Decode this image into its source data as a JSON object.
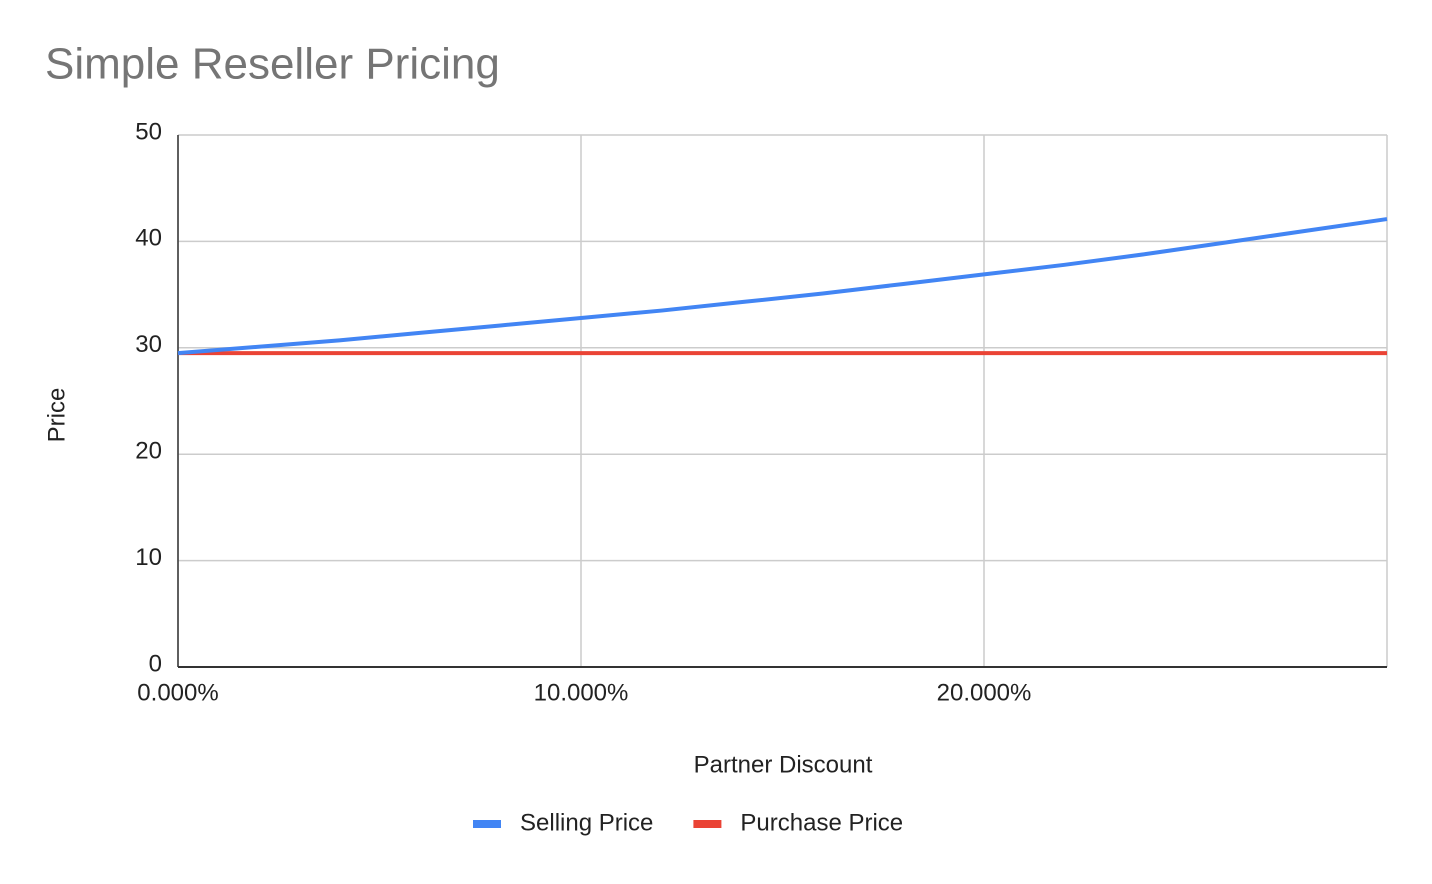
{
  "chart_data": {
    "type": "line",
    "title": "Simple Reseller Pricing",
    "x_label": "Partner Discount",
    "y_label": "Price",
    "x": [
      0,
      2,
      4,
      6,
      8,
      10,
      12,
      14,
      16,
      18,
      20,
      22,
      24,
      26,
      28,
      30
    ],
    "series": [
      {
        "name": "Selling Price",
        "color": "#4285f4",
        "values": [
          29.5,
          30.1,
          30.7,
          31.4,
          32.1,
          32.8,
          33.5,
          34.3,
          35.1,
          36.0,
          36.9,
          37.8,
          38.8,
          39.9,
          41.0,
          42.1
        ]
      },
      {
        "name": "Purchase Price",
        "color": "#ea4335",
        "values": [
          29.5,
          29.5,
          29.5,
          29.5,
          29.5,
          29.5,
          29.5,
          29.5,
          29.5,
          29.5,
          29.5,
          29.5,
          29.5,
          29.5,
          29.5,
          29.5
        ]
      }
    ],
    "xlim": [
      0,
      30
    ],
    "xticks": [
      {
        "value": 0,
        "label": "0.000%"
      },
      {
        "value": 10,
        "label": "10.000%"
      },
      {
        "value": 20,
        "label": "20.000%"
      }
    ],
    "ylim": [
      0,
      50
    ],
    "yticks": [
      0,
      10,
      20,
      30,
      40,
      50
    ],
    "grid": true,
    "legend": "bottom"
  }
}
